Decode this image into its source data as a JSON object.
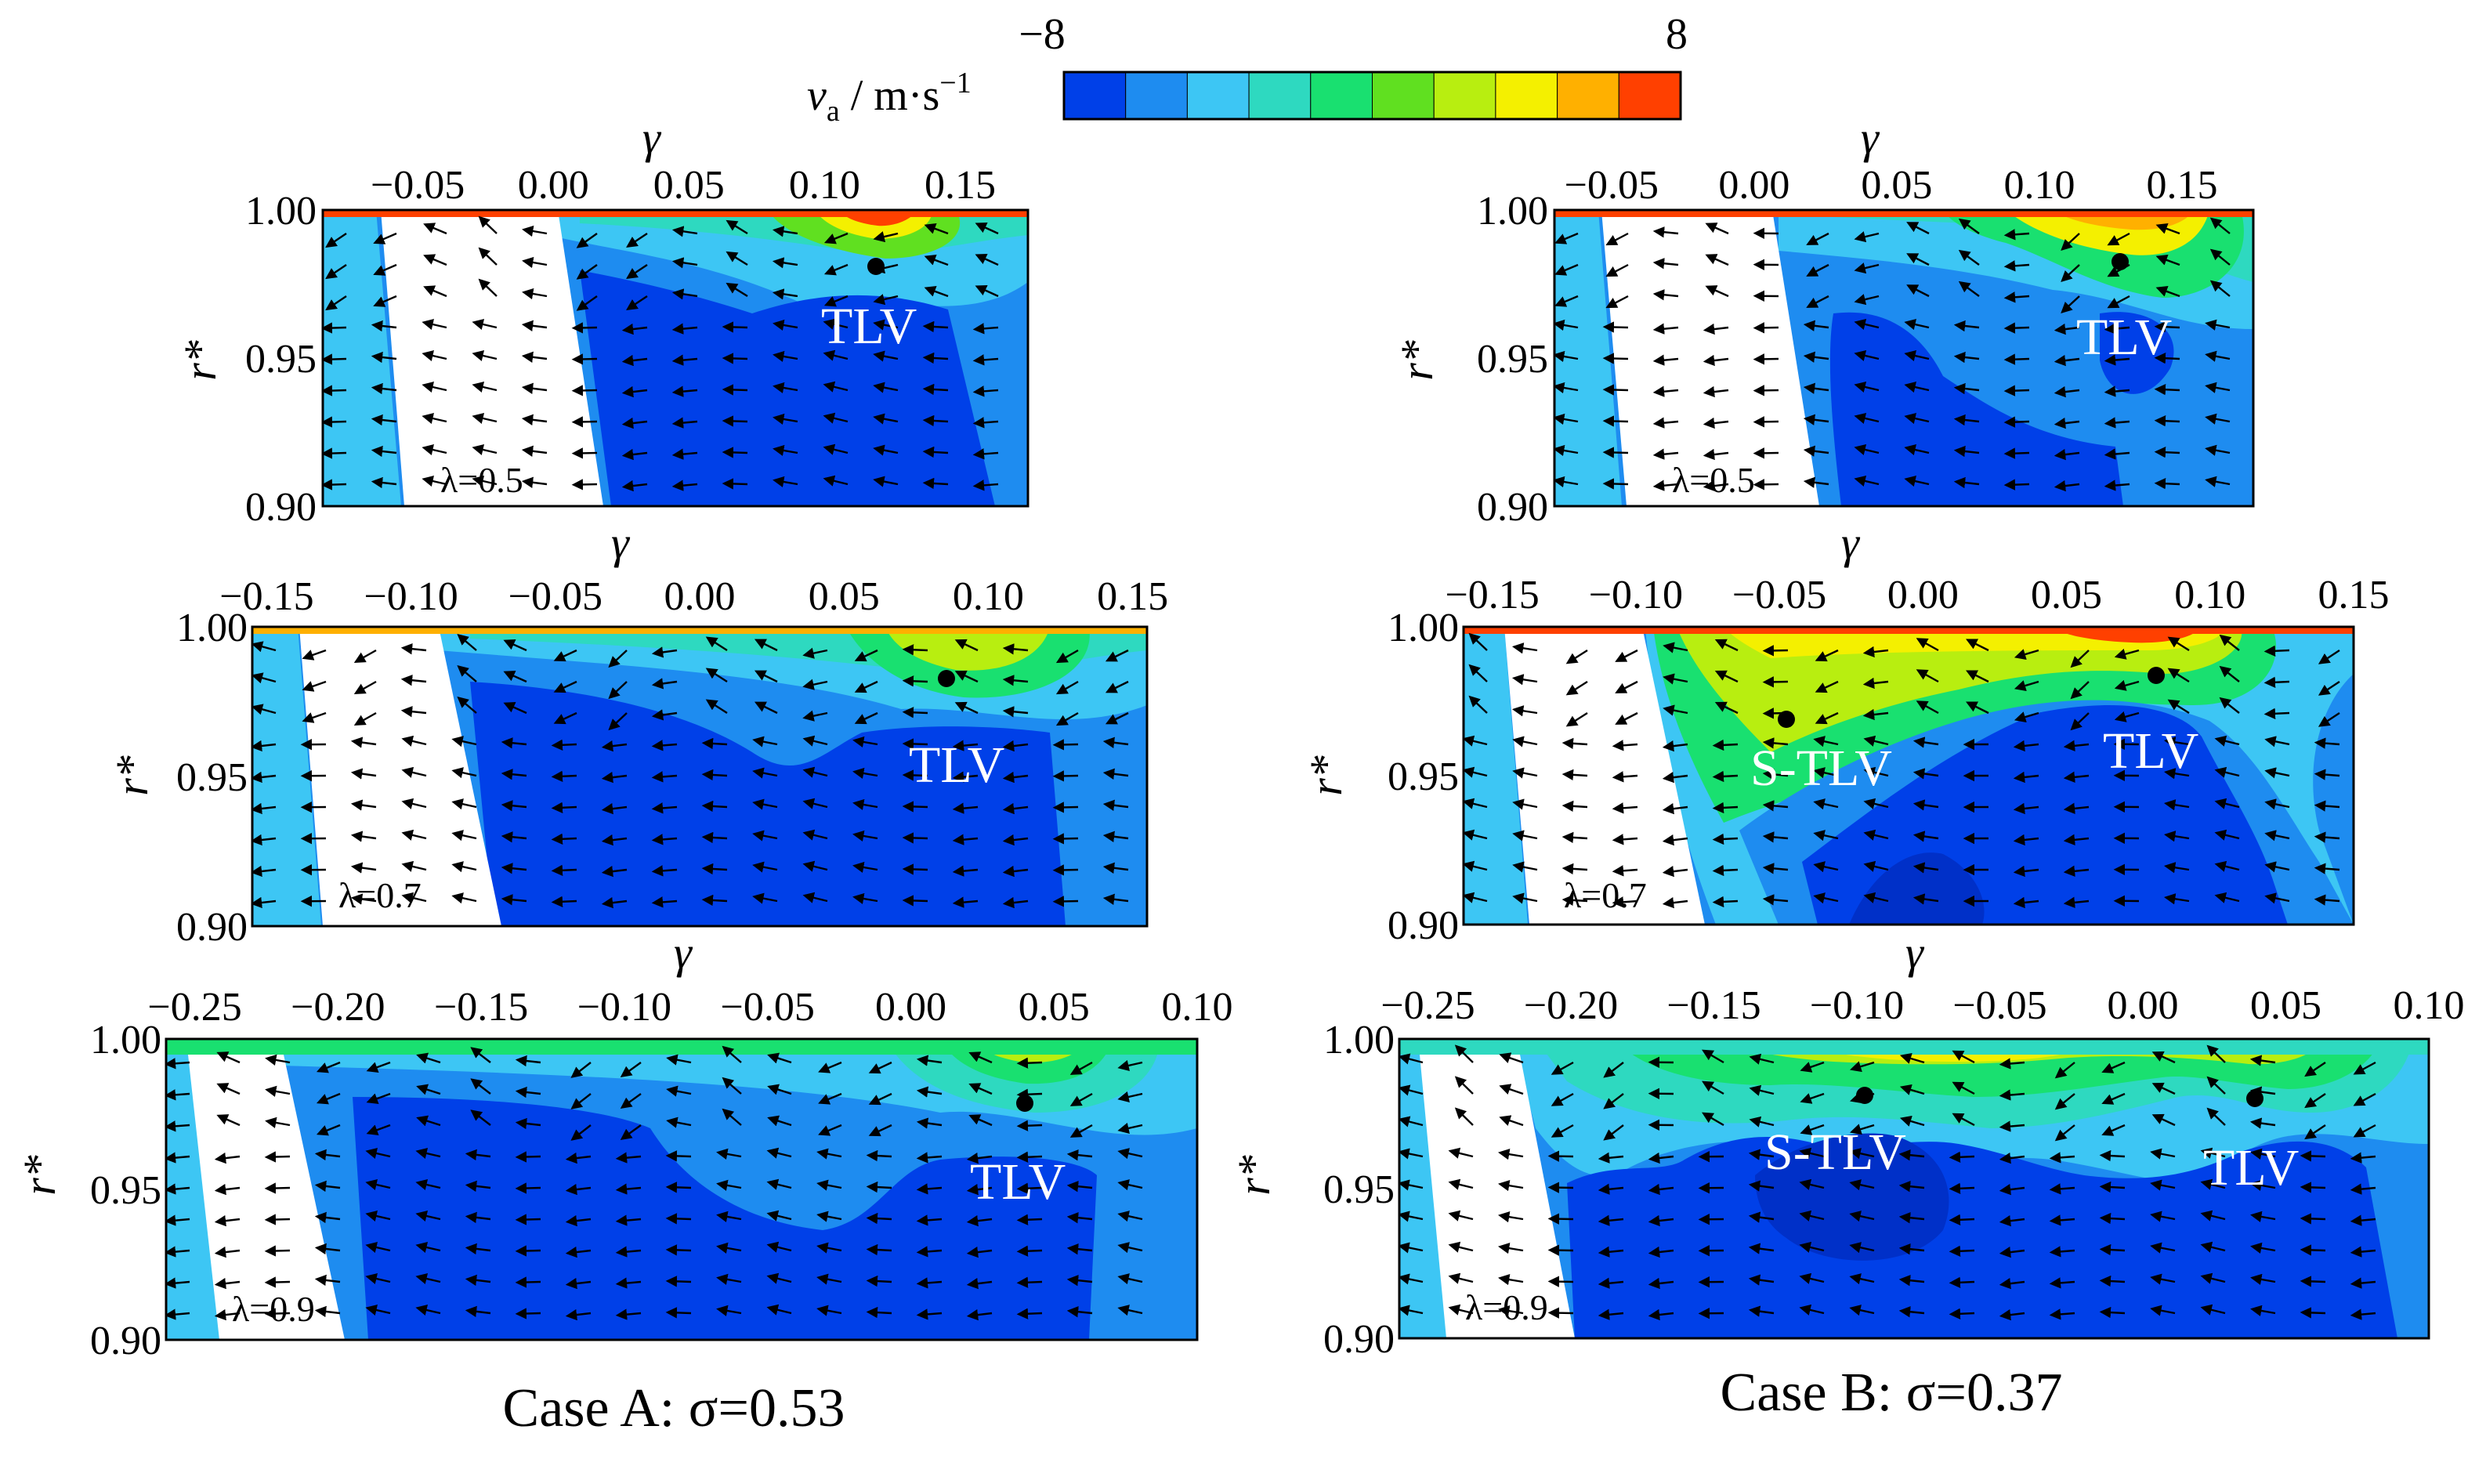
{
  "colorbar": {
    "label_var": "v",
    "label_sub": "a",
    "label_unit": " / m·s",
    "label_exp": "−1",
    "min_label": "−8",
    "max_label": "8",
    "min": -8,
    "max": 8,
    "colors": [
      "#0040e8",
      "#1e8cf0",
      "#3dc6f4",
      "#2ed9c0",
      "#19e070",
      "#60e020",
      "#b8ee10",
      "#f4f000",
      "#ffb000",
      "#ff4000"
    ]
  },
  "captions": {
    "case_a": "Case A: σ=0.53",
    "case_b": "Case B: σ=0.37"
  },
  "chart_data": [
    {
      "type": "heatmap",
      "case": "Case A",
      "lambda_label": "λ=0.5",
      "xlabel": "γ",
      "ylabel": "r*",
      "xlim": [
        -0.085,
        0.175
      ],
      "ylim": [
        0.9,
        1.0
      ],
      "xticks": [
        "−0.05",
        "0.00",
        "0.05",
        "0.10",
        "0.15"
      ],
      "yticks": [
        "0.90",
        "0.95",
        "1.00"
      ],
      "annotations": [
        {
          "text": "TLV",
          "x": 0.125,
          "y": 0.983
        }
      ]
    },
    {
      "type": "heatmap",
      "case": "Case A",
      "lambda_label": "λ=0.7",
      "xlabel": "γ",
      "ylabel": "r*",
      "xlim": [
        -0.155,
        0.155
      ],
      "ylim": [
        0.9,
        1.0
      ],
      "xticks": [
        "−0.15",
        "−0.10",
        "−0.05",
        "0.00",
        "0.05",
        "0.10",
        "0.15"
      ],
      "yticks": [
        "0.90",
        "0.95",
        "1.00"
      ],
      "annotations": [
        {
          "text": "TLV",
          "x": 0.085,
          "y": 0.983
        }
      ]
    },
    {
      "type": "heatmap",
      "case": "Case A",
      "lambda_label": "λ=0.9",
      "xlabel": "γ",
      "ylabel": "r*",
      "xlim": [
        -0.26,
        0.1
      ],
      "ylim": [
        0.9,
        1.0
      ],
      "xticks": [
        "−0.25",
        "−0.20",
        "−0.15",
        "−0.10",
        "−0.05",
        "0.00",
        "0.05",
        "0.10"
      ],
      "yticks": [
        "0.90",
        "0.95",
        "1.00"
      ],
      "annotations": [
        {
          "text": "TLV",
          "x": 0.04,
          "y": 0.978
        }
      ]
    },
    {
      "type": "heatmap",
      "case": "Case B",
      "lambda_label": "λ=0.5",
      "xlabel": "γ",
      "ylabel": "r*",
      "xlim": [
        -0.07,
        0.175
      ],
      "ylim": [
        0.9,
        1.0
      ],
      "xticks": [
        "−0.05",
        "0.00",
        "0.05",
        "0.10",
        "0.15"
      ],
      "yticks": [
        "0.90",
        "0.95",
        "1.00"
      ],
      "annotations": [
        {
          "text": "TLV",
          "x": 0.13,
          "y": 0.985
        }
      ]
    },
    {
      "type": "heatmap",
      "case": "Case B",
      "lambda_label": "λ=0.7",
      "xlabel": "γ",
      "ylabel": "r*",
      "xlim": [
        -0.16,
        0.15
      ],
      "ylim": [
        0.9,
        1.0
      ],
      "xticks": [
        "−0.15",
        "−0.10",
        "−0.05",
        "0.00",
        "0.05",
        "0.10",
        "0.15"
      ],
      "yticks": [
        "0.90",
        "0.95",
        "1.00"
      ],
      "annotations": [
        {
          "text": "S-TLV",
          "x": -0.05,
          "y": 0.969
        },
        {
          "text": "TLV",
          "x": 0.08,
          "y": 0.983
        }
      ]
    },
    {
      "type": "heatmap",
      "case": "Case B",
      "lambda_label": "λ=0.9",
      "xlabel": "γ",
      "ylabel": "r*",
      "xlim": [
        -0.26,
        0.1
      ],
      "ylim": [
        0.9,
        1.0
      ],
      "xticks": [
        "−0.25",
        "−0.20",
        "−0.15",
        "−0.10",
        "−0.05",
        "0.00",
        "0.05",
        "0.10"
      ],
      "yticks": [
        "0.90",
        "0.95",
        "1.00"
      ],
      "annotations": [
        {
          "text": "S-TLV",
          "x": -0.095,
          "y": 0.982
        },
        {
          "text": "TLV",
          "x": 0.04,
          "y": 0.98
        }
      ]
    }
  ]
}
